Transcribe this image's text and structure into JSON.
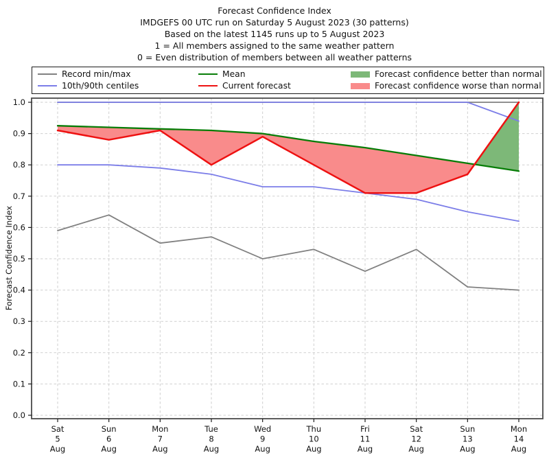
{
  "title": {
    "line1": "Forecast Confidence Index",
    "line2": "IMDGEFS 00 UTC run on Saturday 5 August 2023 (30 patterns)",
    "line3": "Based on the latest 1145 runs up to 5 August 2023",
    "line4": "1 = All members assigned to the same weather pattern",
    "line5": "0 = Even distribution of members between all weather patterns"
  },
  "legend": {
    "entries": [
      {
        "label": "Record min/max",
        "type": "line",
        "color": "#808080"
      },
      {
        "label": "10th/90th centiles",
        "type": "line",
        "color": "#7b7de8"
      },
      {
        "label": "Mean",
        "type": "line",
        "color": "#077d07"
      },
      {
        "label": "Current forecast",
        "type": "line",
        "color": "#ee1111"
      },
      {
        "label": "Forecast confidence better than normal",
        "type": "patch",
        "color": "#7db878"
      },
      {
        "label": "Forecast confidence worse than normal",
        "type": "patch",
        "color": "#f98b8b"
      }
    ]
  },
  "chart_data": {
    "type": "line",
    "title": "Forecast Confidence Index",
    "xlabel": "",
    "ylabel": "Forecast Confidence Index",
    "ylim": [
      0.0,
      1.0
    ],
    "yticks": [
      0.0,
      0.1,
      0.2,
      0.3,
      0.4,
      0.5,
      0.6,
      0.7,
      0.8,
      0.9,
      1.0
    ],
    "grid": true,
    "legend_position": "top",
    "categories": [
      {
        "day": "Sat",
        "date": "5",
        "month": "Aug"
      },
      {
        "day": "Sun",
        "date": "6",
        "month": "Aug"
      },
      {
        "day": "Mon",
        "date": "7",
        "month": "Aug"
      },
      {
        "day": "Tue",
        "date": "8",
        "month": "Aug"
      },
      {
        "day": "Wed",
        "date": "9",
        "month": "Aug"
      },
      {
        "day": "Thu",
        "date": "10",
        "month": "Aug"
      },
      {
        "day": "Fri",
        "date": "11",
        "month": "Aug"
      },
      {
        "day": "Sat",
        "date": "12",
        "month": "Aug"
      },
      {
        "day": "Sun",
        "date": "13",
        "month": "Aug"
      },
      {
        "day": "Mon",
        "date": "14",
        "month": "Aug"
      }
    ],
    "series": [
      {
        "name": "Record max",
        "role": "record",
        "color": "#808080",
        "width": 1.8,
        "values": [
          1.0,
          1.0,
          1.0,
          1.0,
          1.0,
          1.0,
          1.0,
          1.0,
          1.0,
          1.0
        ]
      },
      {
        "name": "Record min",
        "role": "record",
        "color": "#808080",
        "width": 1.8,
        "values": [
          0.59,
          0.64,
          0.55,
          0.57,
          0.5,
          0.53,
          0.46,
          0.53,
          0.41,
          0.4
        ]
      },
      {
        "name": "90th centile",
        "role": "centile",
        "color": "#7b7de8",
        "width": 1.8,
        "values": [
          1.0,
          1.0,
          1.0,
          1.0,
          1.0,
          1.0,
          1.0,
          1.0,
          1.0,
          0.94
        ]
      },
      {
        "name": "10th centile",
        "role": "centile",
        "color": "#7b7de8",
        "width": 1.8,
        "values": [
          0.8,
          0.8,
          0.79,
          0.77,
          0.73,
          0.73,
          0.71,
          0.69,
          0.65,
          0.62
        ]
      },
      {
        "name": "Mean",
        "role": "mean",
        "color": "#077d07",
        "width": 2.3,
        "values": [
          0.925,
          0.92,
          0.915,
          0.91,
          0.9,
          0.875,
          0.855,
          0.83,
          0.805,
          0.78
        ]
      },
      {
        "name": "Current forecast",
        "role": "current",
        "color": "#ee1111",
        "width": 2.5,
        "values": [
          0.91,
          0.88,
          0.91,
          0.8,
          0.89,
          0.8,
          0.71,
          0.71,
          0.77,
          1.0
        ]
      }
    ],
    "fills": [
      {
        "name": "Forecast confidence better than normal",
        "between": [
          "Current forecast",
          "Mean"
        ],
        "when": "current_above_mean",
        "color": "#7db878"
      },
      {
        "name": "Forecast confidence worse than normal",
        "between": [
          "Current forecast",
          "Mean"
        ],
        "when": "current_below_mean",
        "color": "#f98b8b"
      }
    ]
  }
}
